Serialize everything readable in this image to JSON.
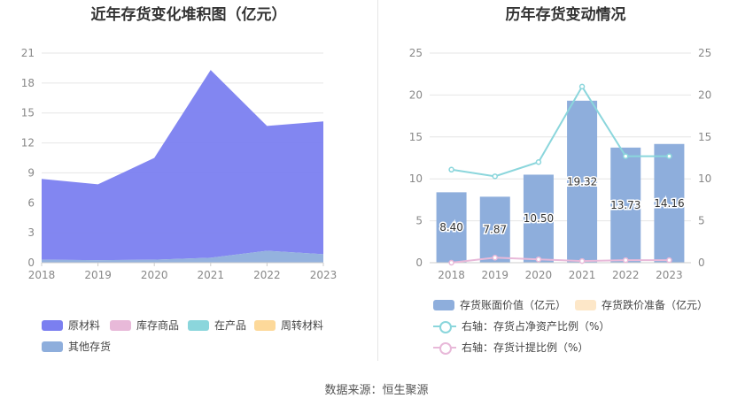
{
  "source_text": "数据来源：恒生聚源",
  "colors": {
    "raw_materials": "#7b7ff0",
    "wip_inventory": "#e8b9d9",
    "in_production": "#8bd6dc",
    "turnover_materials": "#fdd99a",
    "other_inventory": "#8eaedc",
    "book_value_bar": "#8eaedc",
    "impairment_bar": "#fde7c8",
    "ratio_line": "#8bd6dc",
    "provision_line": "#e8b9d9",
    "grid": "#e6e6e6",
    "axis_text": "#888888"
  },
  "chart_data": [
    {
      "type": "area",
      "title": "近年存货变化堆积图（亿元）",
      "x": [
        "2018",
        "2019",
        "2020",
        "2021",
        "2022",
        "2023"
      ],
      "ylim": [
        0,
        21
      ],
      "yticks": [
        "0",
        "3",
        "6",
        "9",
        "12",
        "15",
        "18",
        "21"
      ],
      "series": [
        {
          "name": "原材料",
          "key": "raw_materials",
          "values": [
            8.1,
            7.6,
            10.2,
            18.8,
            12.5,
            13.3
          ]
        },
        {
          "name": "库存商品",
          "key": "wip_inventory",
          "values": [
            0,
            0,
            0,
            0,
            0,
            0
          ]
        },
        {
          "name": "在产品",
          "key": "in_production",
          "values": [
            0,
            0,
            0,
            0,
            0,
            0
          ]
        },
        {
          "name": "周转材料",
          "key": "turnover_materials",
          "values": [
            0,
            0,
            0,
            0,
            0,
            0
          ]
        },
        {
          "name": "其他存货",
          "key": "other_inventory",
          "values": [
            0.3,
            0.25,
            0.3,
            0.5,
            1.2,
            0.85
          ]
        }
      ]
    },
    {
      "type": "bar",
      "title": "历年存货变动情况",
      "categories": [
        "2018",
        "2019",
        "2020",
        "2021",
        "2022",
        "2023"
      ],
      "ylim_left": [
        0,
        25
      ],
      "ylim_right": [
        0,
        25
      ],
      "yticks": [
        "0",
        "5",
        "10",
        "15",
        "20",
        "25"
      ],
      "series": [
        {
          "name": "存货账面价值（亿元）",
          "kind": "bar",
          "axis": "left",
          "values": [
            8.4,
            7.87,
            10.5,
            19.32,
            13.73,
            14.16
          ],
          "labels": [
            "8.40",
            "7.87",
            "10.50",
            "19.32",
            "13.73",
            "14.16"
          ]
        },
        {
          "name": "存货跌价准备（亿元）",
          "kind": "bar",
          "axis": "left",
          "values": [
            0,
            0,
            0,
            0,
            0,
            0
          ]
        },
        {
          "name": "右轴：存货占净资产比例（%）",
          "kind": "line",
          "axis": "right",
          "values": [
            11.1,
            10.3,
            12.0,
            21.0,
            12.7,
            12.7
          ]
        },
        {
          "name": "右轴：存货计提比例（%）",
          "kind": "line",
          "axis": "right",
          "values": [
            0.0,
            0.6,
            0.4,
            0.2,
            0.3,
            0.3
          ]
        }
      ]
    }
  ]
}
